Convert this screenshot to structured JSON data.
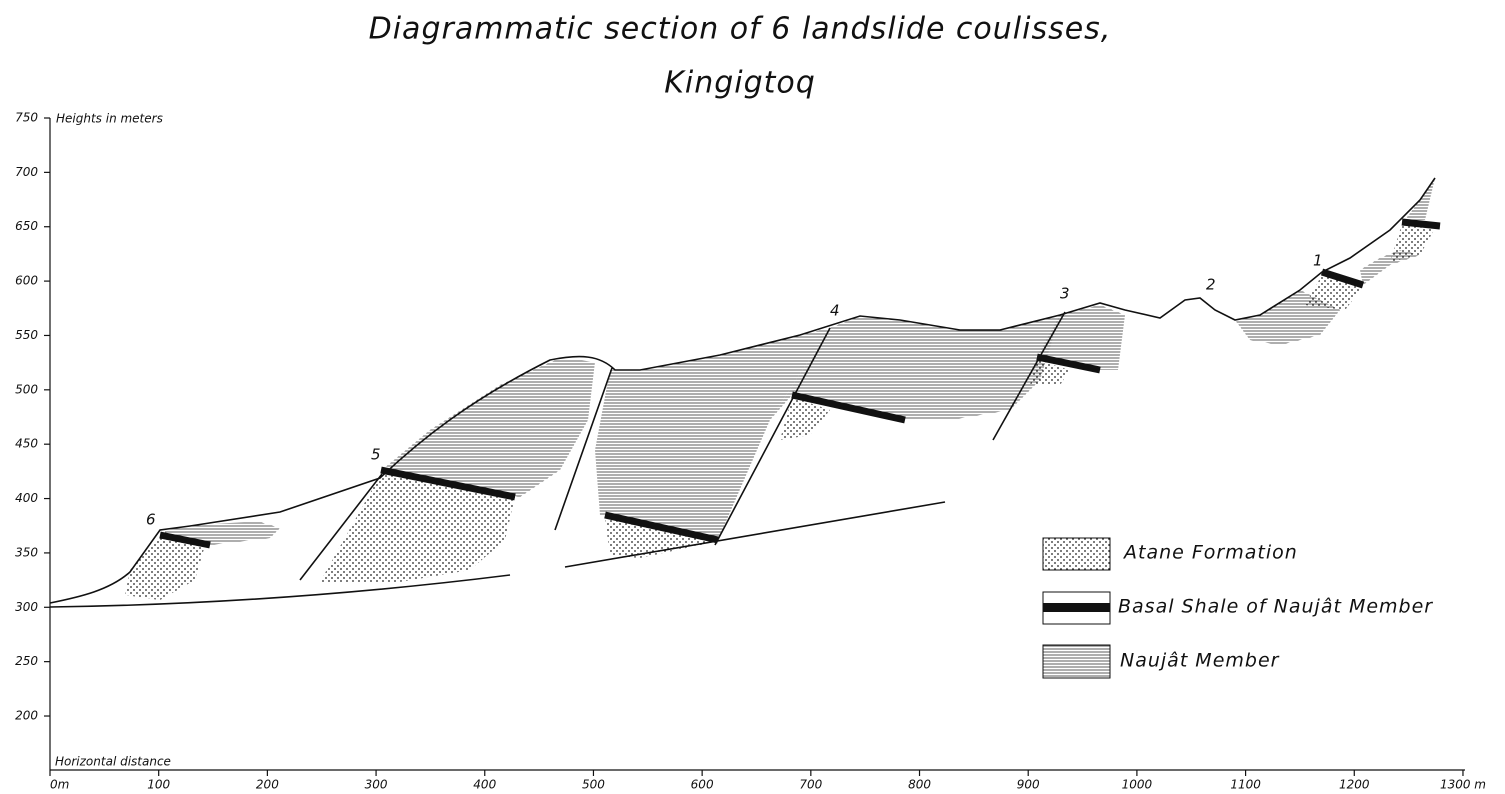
{
  "title": [
    "Diagrammatic section of 6 landslide coulisses,",
    "Kingigtoq"
  ],
  "axes": {
    "y_label": "Heights in meters",
    "x_label": "Horizontal distance",
    "yticks": [
      750,
      700,
      650,
      600,
      550,
      500,
      450,
      400,
      350,
      300,
      250,
      200
    ],
    "xticks": [
      {
        "value": 0,
        "label": "0m"
      },
      100,
      200,
      300,
      400,
      500,
      600,
      700,
      800,
      900,
      1000,
      1100,
      1200,
      {
        "value": 1300,
        "label": "1300 m"
      }
    ]
  },
  "coulisses": [
    "1",
    "2",
    "3",
    "4",
    "5",
    "6"
  ],
  "legend": [
    "Atane Formation",
    "Basal Shale of Naujât Member",
    "Naujât Member"
  ]
}
